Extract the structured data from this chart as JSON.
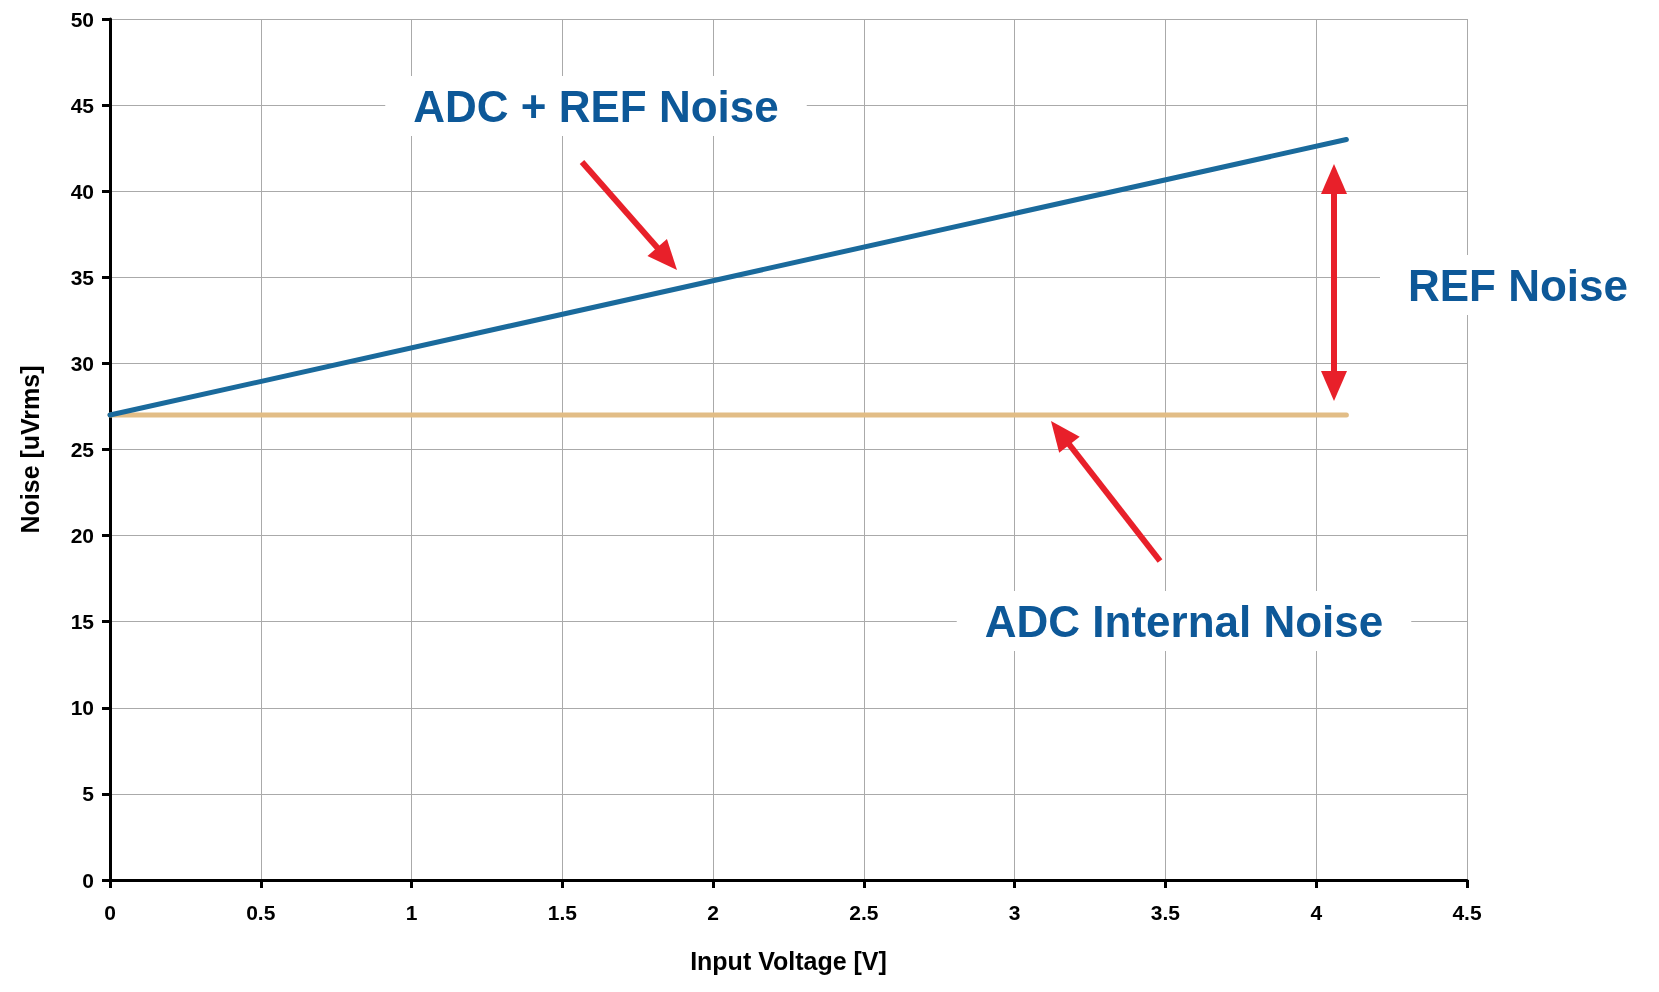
{
  "chart_data": {
    "type": "line",
    "xlabel": "Input Voltage [V]",
    "ylabel": "Noise [uVrms]",
    "x": [
      0,
      4.1
    ],
    "series": [
      {
        "color": "#1a6a9c",
        "values": [
          27,
          43
        ]
      },
      {
        "color": "#e2bd86",
        "values": [
          27,
          27
        ]
      }
    ],
    "annotations": [
      "ADC + REF Noise",
      "ADC Internal Noise",
      "REF Noise"
    ],
    "xlim": [
      0,
      4.5
    ],
    "xticks": [
      0,
      0.5,
      1,
      1.5,
      2,
      2.5,
      3,
      3.5,
      4,
      4.5
    ],
    "ylim": [
      0,
      50
    ],
    "yticks": [
      0,
      5,
      10,
      15,
      20,
      25,
      30,
      35,
      40,
      45,
      50
    ],
    "grid": true,
    "marker": "none",
    "line_style": "solid"
  }
}
